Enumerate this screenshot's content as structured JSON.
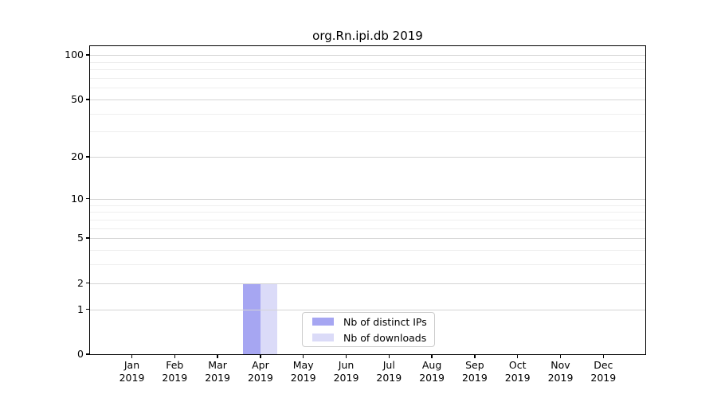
{
  "chart_data": {
    "type": "bar",
    "title": "org.Rn.ipi.db 2019",
    "categories": [
      "Jan 2019",
      "Feb 2019",
      "Mar 2019",
      "Apr 2019",
      "May 2019",
      "Jun 2019",
      "Jul 2019",
      "Aug 2019",
      "Sep 2019",
      "Oct 2019",
      "Nov 2019",
      "Dec 2019"
    ],
    "series": [
      {
        "name": "Nb of distinct IPs",
        "color": "#a6a6f2",
        "values": [
          0,
          0,
          0,
          2,
          0,
          0,
          0,
          0,
          0,
          0,
          0,
          0
        ]
      },
      {
        "name": "Nb of downloads",
        "color": "#dbdbf8",
        "values": [
          0,
          0,
          0,
          2,
          0,
          0,
          0,
          0,
          0,
          0,
          0,
          0
        ]
      }
    ],
    "xlabel": "",
    "ylabel": "",
    "yscale": "log1p",
    "ylim": [
      0,
      117
    ],
    "yticks": [
      0,
      1,
      2,
      5,
      10,
      20,
      50,
      100
    ],
    "yticks_minor": [
      3,
      4,
      6,
      7,
      8,
      9,
      30,
      40,
      60,
      70,
      80,
      90
    ],
    "grid": true,
    "legend_position": "lower center inside plot"
  },
  "colors": {
    "background": "#ffffff",
    "spine": "#000000",
    "text": "#000000",
    "grid_major": "#d4d4d4",
    "grid_minor": "#eeeeee",
    "legend_border": "#cccccc"
  }
}
